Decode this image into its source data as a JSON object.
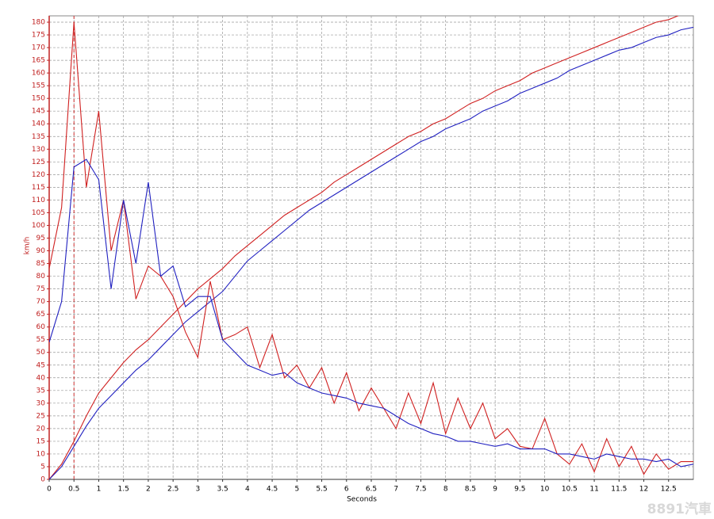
{
  "chart_data": {
    "type": "line",
    "xlabel": "Seconds",
    "ylabel": "km/h",
    "watermark": "8891汽車",
    "xlim": [
      0,
      13
    ],
    "ylim": [
      0,
      182.5
    ],
    "xticks": [
      0,
      0.5,
      1,
      1.5,
      2,
      2.5,
      3,
      3.5,
      4,
      4.5,
      5,
      5.5,
      6,
      6.5,
      7,
      7.5,
      8,
      8.5,
      9,
      9.5,
      10,
      10.5,
      11,
      11.5,
      12,
      12.5
    ],
    "yticks": [
      0,
      5,
      10,
      15,
      20,
      25,
      30,
      35,
      40,
      45,
      50,
      55,
      60,
      65,
      70,
      75,
      80,
      85,
      90,
      95,
      100,
      105,
      110,
      115,
      120,
      125,
      130,
      135,
      140,
      145,
      150,
      155,
      160,
      165,
      170,
      175,
      180
    ],
    "grid": true,
    "marker_x": 0.5,
    "marker_color": "#d03030",
    "x": [
      0,
      0.25,
      0.5,
      0.75,
      1,
      1.25,
      1.5,
      1.75,
      2,
      2.25,
      2.5,
      2.75,
      3,
      3.25,
      3.5,
      3.75,
      4,
      4.25,
      4.5,
      4.75,
      5,
      5.25,
      5.5,
      5.75,
      6,
      6.25,
      6.5,
      6.75,
      7,
      7.25,
      7.5,
      7.75,
      8,
      8.25,
      8.5,
      8.75,
      9,
      9.25,
      9.5,
      9.75,
      10,
      10.25,
      10.5,
      10.75,
      11,
      11.25,
      11.5,
      11.75,
      12,
      12.25,
      12.5,
      12.75,
      13
    ],
    "series": [
      {
        "color": "#d02020",
        "values": [
          0,
          6,
          15,
          25,
          34,
          40,
          46,
          51,
          55,
          60,
          65,
          70,
          75,
          79,
          83,
          88,
          92,
          96,
          100,
          104,
          107,
          110,
          113,
          117,
          120,
          123,
          126,
          129,
          132,
          135,
          137,
          140,
          142,
          145,
          148,
          150,
          153,
          155,
          157,
          160,
          162,
          164,
          166,
          168,
          170,
          172,
          174,
          176,
          178,
          180,
          181,
          183,
          185
        ]
      },
      {
        "color": "#2020c0",
        "values": [
          0,
          5,
          13,
          21,
          28,
          33,
          38,
          43,
          47,
          52,
          57,
          62,
          66,
          70,
          74,
          80,
          86,
          90,
          94,
          98,
          102,
          106,
          109,
          112,
          115,
          118,
          121,
          124,
          127,
          130,
          133,
          135,
          138,
          140,
          142,
          145,
          147,
          149,
          152,
          154,
          156,
          158,
          161,
          163,
          165,
          167,
          169,
          170,
          172,
          174,
          175,
          177,
          178
        ]
      },
      {
        "color": "#d02020",
        "values": [
          83,
          107,
          180,
          115,
          145,
          90,
          110,
          71,
          84,
          80,
          72,
          58,
          48,
          78,
          55,
          57,
          60,
          44,
          57,
          40,
          45,
          36,
          44,
          30,
          42,
          27,
          36,
          28,
          20,
          34,
          22,
          38,
          18,
          32,
          20,
          30,
          16,
          20,
          13,
          12,
          24,
          10,
          6,
          14,
          3,
          16,
          5,
          13,
          2,
          10,
          4,
          7,
          7
        ]
      },
      {
        "color": "#2020c0",
        "values": [
          54,
          70,
          123,
          126,
          118,
          75,
          110,
          85,
          117,
          80,
          84,
          68,
          72,
          72,
          55,
          50,
          45,
          43,
          41,
          42,
          38,
          36,
          34,
          33,
          32,
          30,
          29,
          28,
          25,
          22,
          20,
          18,
          17,
          15,
          15,
          14,
          13,
          14,
          12,
          12,
          12,
          10,
          10,
          9,
          8,
          10,
          9,
          8,
          8,
          7,
          8,
          5,
          6
        ]
      }
    ]
  }
}
